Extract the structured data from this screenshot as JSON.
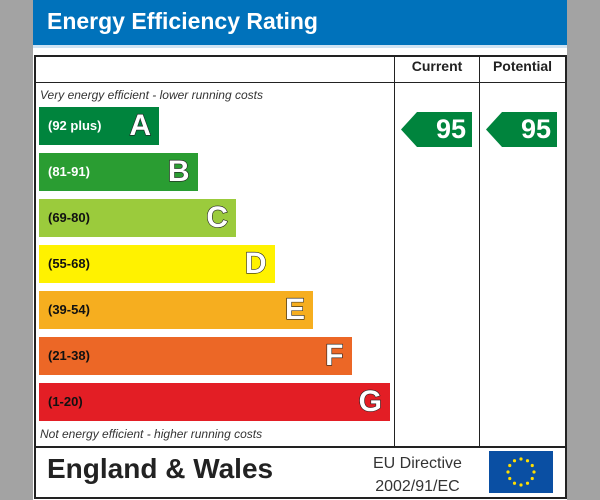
{
  "title": "Energy Efficiency Rating",
  "columns": {
    "current": "Current",
    "potential": "Potential"
  },
  "top_note": "Very energy efficient - lower running costs",
  "bottom_note": "Not energy efficient - higher running costs",
  "chart_data": {
    "type": "bar",
    "title": "Energy Efficiency Rating",
    "bands": [
      {
        "letter": "A",
        "range": "(92 plus)",
        "color": "#00843d",
        "label_color": "#ffffff"
      },
      {
        "letter": "B",
        "range": "(81-91)",
        "color": "#2a9d32",
        "label_color": "#ffffff"
      },
      {
        "letter": "C",
        "range": "(69-80)",
        "color": "#9bcb3c",
        "label_color": "#111111"
      },
      {
        "letter": "D",
        "range": "(55-68)",
        "color": "#fff200",
        "label_color": "#111111"
      },
      {
        "letter": "E",
        "range": "(39-54)",
        "color": "#f6ae1f",
        "label_color": "#111111"
      },
      {
        "letter": "F",
        "range": "(21-38)",
        "color": "#ec6726",
        "label_color": "#111111"
      },
      {
        "letter": "G",
        "range": "(1-20)",
        "color": "#e31e25",
        "label_color": "#111111"
      }
    ],
    "current": {
      "value": "95",
      "band": "A",
      "color": "#00843d"
    },
    "potential": {
      "value": "95",
      "band": "A",
      "color": "#00843d"
    }
  },
  "footer": {
    "region": "England & Wales",
    "directive_line1": "EU Directive",
    "directive_line2": "2002/91/EC"
  }
}
